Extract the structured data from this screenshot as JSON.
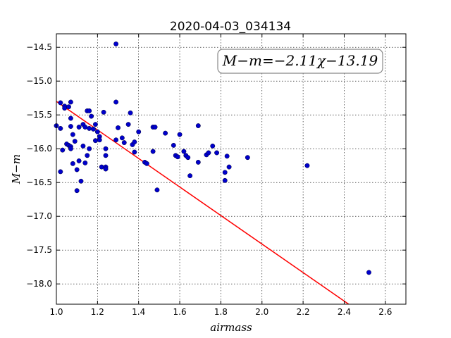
{
  "chart_data": {
    "type": "scatter",
    "title": "2020-04-03_034134",
    "xlabel": "airmass",
    "ylabel": "M−m",
    "xlim": [
      1.0,
      2.7
    ],
    "ylim": [
      -18.3,
      -14.3
    ],
    "y_inverted": true,
    "grid": true,
    "xticks": [
      "1.0",
      "1.2",
      "1.4",
      "1.6",
      "1.8",
      "2.0",
      "2.2",
      "2.4",
      "2.6"
    ],
    "yticks": [
      "−14.5",
      "−15.0",
      "−15.5",
      "−16.0",
      "−16.5",
      "−17.0",
      "−17.5",
      "−18.0"
    ],
    "annotation": "M−m=−2.11χ−13.19",
    "fit": {
      "slope": -2.11,
      "intercept": -13.19,
      "color": "#ff0000"
    },
    "point_color": "#0000cc",
    "points": [
      [
        1.0,
        -15.66
      ],
      [
        1.02,
        -15.32
      ],
      [
        1.02,
        -15.7
      ],
      [
        1.02,
        -16.34
      ],
      [
        1.03,
        -16.02
      ],
      [
        1.04,
        -15.37
      ],
      [
        1.04,
        -15.4
      ],
      [
        1.05,
        -15.93
      ],
      [
        1.06,
        -15.95
      ],
      [
        1.06,
        -15.38
      ],
      [
        1.07,
        -15.31
      ],
      [
        1.07,
        -15.55
      ],
      [
        1.07,
        -15.67
      ],
      [
        1.07,
        -15.97
      ],
      [
        1.07,
        -16.0
      ],
      [
        1.08,
        -15.79
      ],
      [
        1.08,
        -16.22
      ],
      [
        1.09,
        -15.89
      ],
      [
        1.1,
        -16.31
      ],
      [
        1.1,
        -16.62
      ],
      [
        1.11,
        -15.68
      ],
      [
        1.11,
        -16.18
      ],
      [
        1.12,
        -16.48
      ],
      [
        1.13,
        -15.64
      ],
      [
        1.13,
        -15.96
      ],
      [
        1.14,
        -15.68
      ],
      [
        1.14,
        -16.21
      ],
      [
        1.15,
        -15.44
      ],
      [
        1.15,
        -16.1
      ],
      [
        1.16,
        -15.44
      ],
      [
        1.16,
        -16.0
      ],
      [
        1.16,
        -15.7
      ],
      [
        1.17,
        -15.52
      ],
      [
        1.18,
        -15.71
      ],
      [
        1.19,
        -15.64
      ],
      [
        1.19,
        -15.88
      ],
      [
        1.2,
        -15.75
      ],
      [
        1.21,
        -15.82
      ],
      [
        1.21,
        -15.87
      ],
      [
        1.22,
        -16.27
      ],
      [
        1.23,
        -15.46
      ],
      [
        1.24,
        -16.27
      ],
      [
        1.24,
        -16.3
      ],
      [
        1.24,
        -16.0
      ],
      [
        1.24,
        -16.1
      ],
      [
        1.29,
        -14.45
      ],
      [
        1.29,
        -15.87
      ],
      [
        1.29,
        -15.31
      ],
      [
        1.3,
        -15.69
      ],
      [
        1.32,
        -15.84
      ],
      [
        1.33,
        -15.91
      ],
      [
        1.35,
        -15.64
      ],
      [
        1.36,
        -15.47
      ],
      [
        1.37,
        -15.94
      ],
      [
        1.38,
        -15.9
      ],
      [
        1.38,
        -16.05
      ],
      [
        1.4,
        -15.75
      ],
      [
        1.43,
        -16.2
      ],
      [
        1.44,
        -16.22
      ],
      [
        1.47,
        -15.68
      ],
      [
        1.47,
        -16.04
      ],
      [
        1.48,
        -15.68
      ],
      [
        1.49,
        -16.61
      ],
      [
        1.53,
        -15.77
      ],
      [
        1.57,
        -15.95
      ],
      [
        1.58,
        -16.1
      ],
      [
        1.59,
        -16.12
      ],
      [
        1.6,
        -15.79
      ],
      [
        1.62,
        -16.04
      ],
      [
        1.63,
        -16.1
      ],
      [
        1.64,
        -16.13
      ],
      [
        1.65,
        -16.4
      ],
      [
        1.69,
        -15.66
      ],
      [
        1.69,
        -16.2
      ],
      [
        1.73,
        -16.09
      ],
      [
        1.74,
        -16.06
      ],
      [
        1.76,
        -15.96
      ],
      [
        1.78,
        -16.06
      ],
      [
        1.82,
        -16.35
      ],
      [
        1.82,
        -16.47
      ],
      [
        1.83,
        -16.11
      ],
      [
        1.84,
        -16.27
      ],
      [
        1.93,
        -16.13
      ],
      [
        2.22,
        -16.25
      ],
      [
        2.52,
        -17.83
      ]
    ]
  }
}
